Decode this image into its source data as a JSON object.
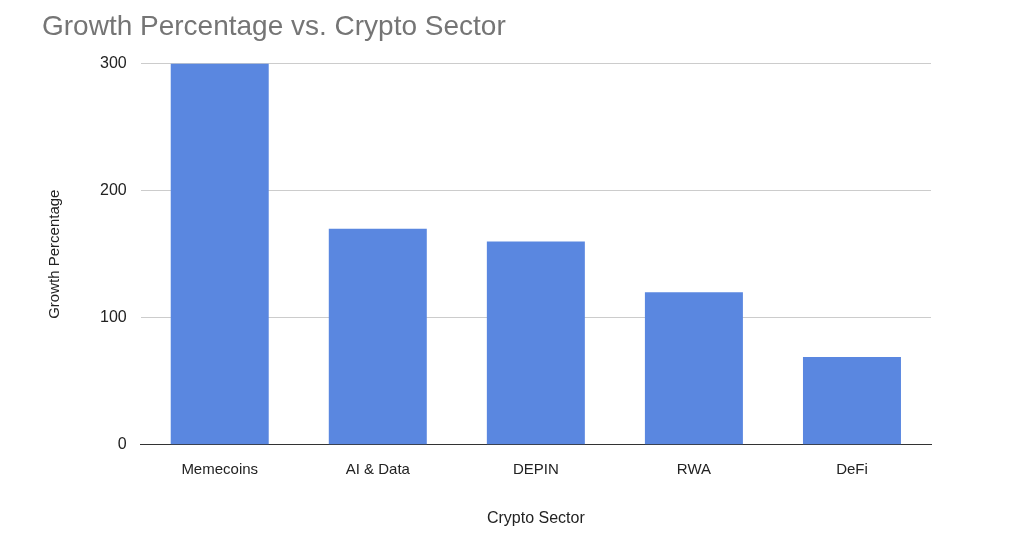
{
  "chart_data": {
    "type": "bar",
    "title": "Growth Percentage vs. Crypto Sector",
    "x_label": "Crypto Sector",
    "y_label": "Growth Percentage",
    "categories": [
      "Memecoins",
      "AI & Data",
      "DEPIN",
      "RWA",
      "DeFi"
    ],
    "values": [
      300,
      170,
      160,
      120,
      69
    ],
    "color": "#5a87e0",
    "ylim": [
      0,
      300
    ],
    "yticks": [
      0,
      100,
      200,
      300
    ],
    "grid": true
  }
}
